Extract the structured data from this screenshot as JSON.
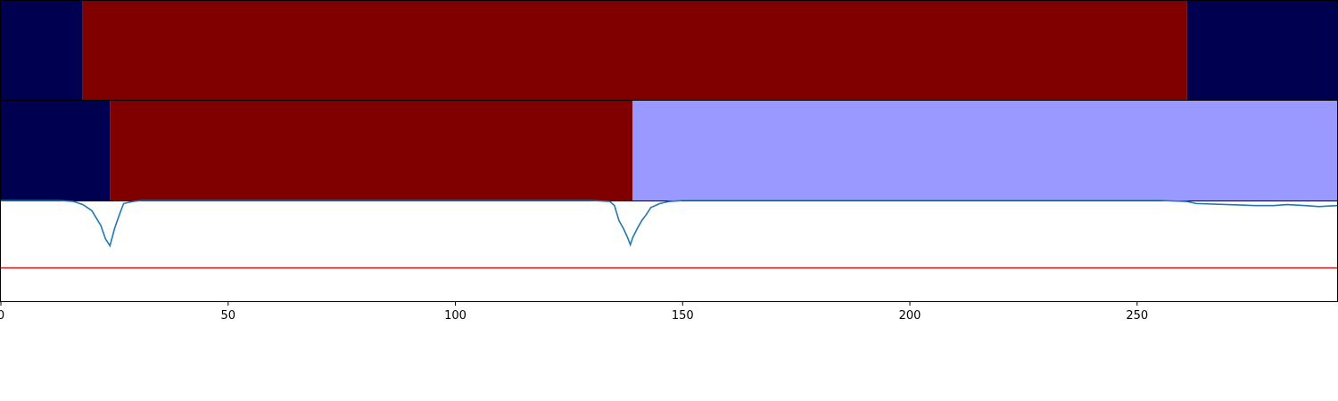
{
  "chart_data": {
    "type": "line",
    "xlim": [
      0,
      294
    ],
    "x_ticks": [
      0,
      50,
      100,
      150,
      200,
      250
    ],
    "x_tick_labels": [
      "0",
      "50",
      "100",
      "150",
      "200",
      "250"
    ],
    "segment_rows": [
      {
        "segments": [
          {
            "start": 0,
            "end": 18,
            "color": "#000050"
          },
          {
            "start": 18,
            "end": 261,
            "color": "#800000"
          },
          {
            "start": 261,
            "end": 294,
            "color": "#000050"
          }
        ]
      },
      {
        "segments": [
          {
            "start": 0,
            "end": 24,
            "color": "#000050"
          },
          {
            "start": 24,
            "end": 139,
            "color": "#800000"
          },
          {
            "start": 139,
            "end": 294,
            "color": "#9999ff"
          }
        ]
      }
    ],
    "signal": {
      "color": "#1f77b4",
      "ylim": [
        0,
        1
      ],
      "points": [
        [
          0,
          1.0
        ],
        [
          13,
          1.0
        ],
        [
          16,
          0.99
        ],
        [
          18,
          0.96
        ],
        [
          20,
          0.9
        ],
        [
          22,
          0.75
        ],
        [
          23,
          0.62
        ],
        [
          24,
          0.55
        ],
        [
          25,
          0.72
        ],
        [
          26,
          0.85
        ],
        [
          27,
          0.97
        ],
        [
          29,
          0.99
        ],
        [
          31,
          1.0
        ],
        [
          60,
          1.0
        ],
        [
          100,
          1.0
        ],
        [
          130,
          1.0
        ],
        [
          134,
          0.99
        ],
        [
          135,
          0.95
        ],
        [
          136,
          0.8
        ],
        [
          137,
          0.72
        ],
        [
          138,
          0.62
        ],
        [
          138.5,
          0.56
        ],
        [
          139,
          0.63
        ],
        [
          140,
          0.72
        ],
        [
          141,
          0.8
        ],
        [
          142,
          0.86
        ],
        [
          143,
          0.93
        ],
        [
          145,
          0.97
        ],
        [
          147,
          0.99
        ],
        [
          150,
          1.0
        ],
        [
          200,
          1.0
        ],
        [
          255,
          1.0
        ],
        [
          261,
          0.99
        ],
        [
          263,
          0.97
        ],
        [
          270,
          0.96
        ],
        [
          276,
          0.95
        ],
        [
          280,
          0.95
        ],
        [
          283,
          0.96
        ],
        [
          287,
          0.95
        ],
        [
          290,
          0.94
        ],
        [
          294,
          0.95
        ]
      ]
    },
    "threshold": {
      "value": 0.33,
      "color": "#d62728"
    }
  }
}
